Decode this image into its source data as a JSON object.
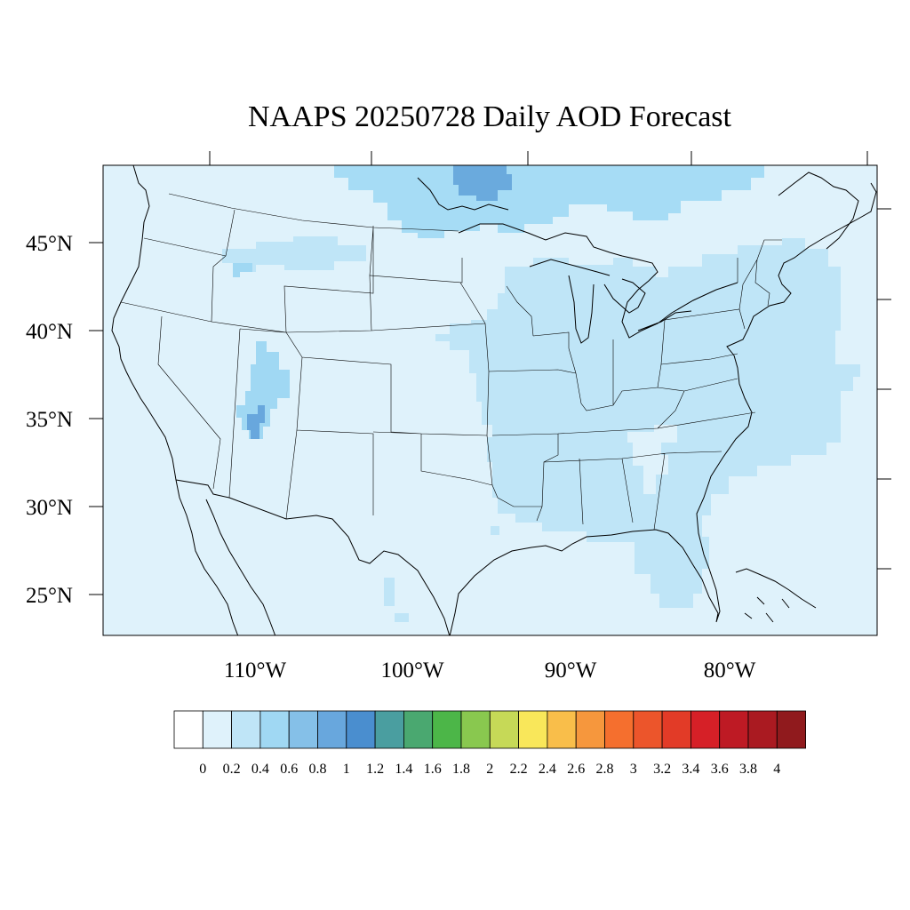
{
  "title": "NAAPS 20250728 Daily AOD Forecast",
  "map": {
    "region": "contiguous United States",
    "lon_range": [
      -119,
      -70
    ],
    "lat_range": [
      22.5,
      49.5
    ],
    "lat_ticks": [
      {
        "value": 45,
        "label": "45°N"
      },
      {
        "value": 40,
        "label": "40°N"
      },
      {
        "value": 35,
        "label": "35°N"
      },
      {
        "value": 30,
        "label": "30°N"
      },
      {
        "value": 25,
        "label": "25°N"
      }
    ],
    "lon_ticks": [
      {
        "value": -110,
        "label": "110°W"
      },
      {
        "value": -100,
        "label": "100°W"
      },
      {
        "value": -90,
        "label": "90°W"
      },
      {
        "value": -80,
        "label": "80°W"
      }
    ],
    "background_level_color": "#dff2fb",
    "plumes": [
      {
        "name": "plume-canada-northern",
        "level": "0.4-0.6",
        "color": "#a6dcf5"
      },
      {
        "name": "plume-canada-core",
        "level": "0.8-1.0",
        "color": "#6aaadd"
      },
      {
        "name": "plume-eastern-us",
        "level": "0.2-0.4",
        "color": "#bfe5f7"
      },
      {
        "name": "plume-utah-arizona",
        "level": "0.6-0.8",
        "color": "#84bfe6"
      }
    ]
  },
  "colorbar": {
    "colors": [
      "#ffffff",
      "#dff2fb",
      "#bfe5f7",
      "#a0d8f3",
      "#85c0e8",
      "#68a7dd",
      "#4a8ecf",
      "#4a9ea0",
      "#4aa870",
      "#4cb648",
      "#89c84f",
      "#c6d957",
      "#f9e75a",
      "#f9be4a",
      "#f6973d",
      "#f56f2e",
      "#ec552b",
      "#e23b27",
      "#d62027",
      "#be1a24",
      "#aa1a21",
      "#901a1d"
    ],
    "labels": [
      "0",
      "0.2",
      "0.4",
      "0.6",
      "0.8",
      "1",
      "1.2",
      "1.4",
      "1.6",
      "1.8",
      "2",
      "2.2",
      "2.4",
      "2.6",
      "2.8",
      "3",
      "3.2",
      "3.4",
      "3.6",
      "3.8",
      "4"
    ]
  }
}
